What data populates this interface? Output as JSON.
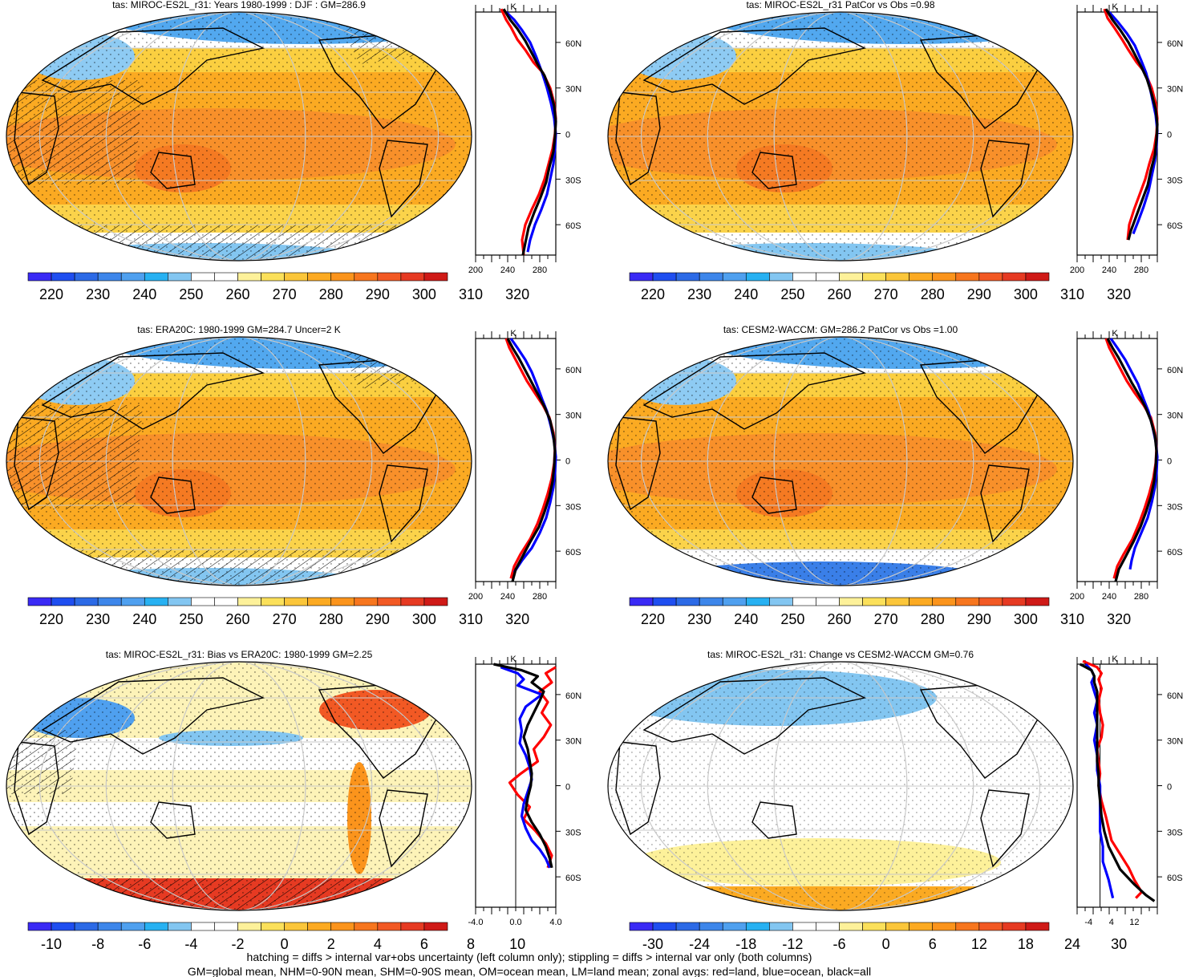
{
  "footer": {
    "line1": "hatching = diffs > internal var+obs uncertainty (left column only); stippling = diffs > internal var only (both columns)",
    "line2": "GM=global mean, NHM=0-90N mean, SHM=0-90S mean, OM=ocean mean, LM=land mean; zonal avgs: red=land, blue=ocean, black=all"
  },
  "colors": {
    "land": "#ff0000",
    "ocean": "#0000ff",
    "all": "#000000",
    "abs_scale": [
      "#3a2af5",
      "#1f4ef0",
      "#2c6ae6",
      "#3d86ea",
      "#4fa0ef",
      "#27b1f2",
      "#83c6f1",
      "#ffffff",
      "#ffffff",
      "#fdf19a",
      "#fbe05a",
      "#fbc63a",
      "#fcaa22",
      "#fb941c",
      "#f7761e",
      "#f25924",
      "#e63a22",
      "#cf1a17"
    ],
    "diff_scale": [
      "#3a2af5",
      "#1f4ef0",
      "#2c6ae6",
      "#3d86ea",
      "#4fa0ef",
      "#27b1f2",
      "#83c6f1",
      "#ffffff",
      "#ffffff",
      "#fdf19a",
      "#fbe05a",
      "#fbc63a",
      "#fcaa22",
      "#fb941c",
      "#f7761e",
      "#f25924",
      "#e63a22",
      "#cf1a17"
    ]
  },
  "panels": [
    {
      "title": "tas: MIROC-ES2L_r31: Years 1980-1999 : DJF : GM=286.9",
      "colorbar_labels": [
        "220",
        "230",
        "240",
        "250",
        "260",
        "270",
        "280",
        "290",
        "300",
        "310",
        "320"
      ],
      "chart_data": {
        "type": "line",
        "unit": "K",
        "xlim": [
          200,
          300
        ],
        "xticks": [
          "200",
          "240",
          "280"
        ],
        "ylim": [
          -80,
          80
        ],
        "yticks": [
          "60N",
          "30N",
          "0",
          "30S",
          "60S"
        ],
        "series": [
          {
            "role": "land",
            "x": [
              232,
              238,
              244,
              252,
              262,
              272,
              284,
              293,
              298,
              300,
              299,
              296,
              291,
              286,
              279,
              270,
              262,
              258,
              260
            ],
            "y": [
              82,
              75,
              70,
              62,
              55,
              47,
              40,
              30,
              20,
              10,
              0,
              -10,
              -20,
              -30,
              -40,
              -50,
              -60,
              -70,
              -80
            ]
          },
          {
            "role": "ocean",
            "x": [
              238,
              248,
              258,
              268,
              276,
              283,
              289,
              294,
              298,
              300,
              299,
              297,
              293,
              289,
              282,
              274,
              268,
              265
            ],
            "y": [
              80,
              75,
              68,
              60,
              50,
              40,
              30,
              20,
              10,
              0,
              -10,
              -20,
              -30,
              -40,
              -50,
              -60,
              -70,
              -78
            ]
          },
          {
            "role": "all",
            "x": [
              235,
              243,
              252,
              262,
              270,
              278,
              286,
              293,
              298,
              300,
              299,
              297,
              292,
              288,
              281,
              273,
              266,
              262,
              259
            ],
            "y": [
              82,
              75,
              69,
              61,
              53,
              45,
              38,
              28,
              18,
              8,
              -2,
              -12,
              -22,
              -32,
              -42,
              -52,
              -62,
              -72,
              -80
            ]
          }
        ]
      }
    },
    {
      "title": "tas: MIROC-ES2L_r31 PatCor vs Obs =0.98",
      "colorbar_labels": [
        "220",
        "230",
        "240",
        "250",
        "260",
        "270",
        "280",
        "290",
        "300",
        "310",
        "320"
      ],
      "chart_data": {
        "type": "line",
        "unit": "K",
        "xlim": [
          200,
          300
        ],
        "xticks": [
          "200",
          "240",
          "280"
        ],
        "ylim": [
          -80,
          80
        ],
        "yticks": [
          "60N",
          "30N",
          "0",
          "30S",
          "60S"
        ],
        "series": [
          {
            "role": "land",
            "x": [
              234,
              238,
              246,
              256,
              264,
              274,
              285,
              293,
              298,
              300,
              299,
              296,
              290,
              285,
              278,
              271,
              265,
              263
            ],
            "y": [
              82,
              76,
              70,
              62,
              55,
              47,
              40,
              30,
              20,
              10,
              0,
              -10,
              -20,
              -30,
              -40,
              -50,
              -60,
              -70
            ]
          },
          {
            "role": "ocean",
            "x": [
              240,
              250,
              262,
              272,
              280,
              286,
              290,
              294,
              298,
              300,
              299,
              297,
              293,
              289,
              283,
              276,
              270
            ],
            "y": [
              80,
              74,
              66,
              58,
              48,
              40,
              32,
              22,
              12,
              2,
              -8,
              -18,
              -28,
              -38,
              -48,
              -58,
              -66
            ]
          },
          {
            "role": "all",
            "x": [
              236,
              244,
              254,
              264,
              272,
              280,
              287,
              293,
              298,
              300,
              299,
              297,
              292,
              288,
              281,
              274,
              267,
              264
            ],
            "y": [
              82,
              75,
              68,
              60,
              52,
              44,
              36,
              26,
              16,
              6,
              -4,
              -14,
              -24,
              -34,
              -44,
              -54,
              -64,
              -70
            ]
          }
        ]
      }
    },
    {
      "title": "tas: ERA20C: 1980-1999 GM=284.7 Uncer=2 K",
      "colorbar_labels": [
        "220",
        "230",
        "240",
        "250",
        "260",
        "270",
        "280",
        "290",
        "300",
        "310",
        "320"
      ],
      "chart_data": {
        "type": "line",
        "unit": "K",
        "xlim": [
          200,
          300
        ],
        "xticks": [
          "200",
          "240",
          "280"
        ],
        "ylim": [
          -80,
          80
        ],
        "yticks": [
          "60N",
          "30N",
          "0",
          "30S",
          "60S"
        ],
        "series": [
          {
            "role": "land",
            "x": [
              238,
              242,
              248,
              256,
              264,
              274,
              284,
              292,
              297,
              299,
              298,
              295,
              290,
              284,
              277,
              268,
              256,
              248,
              244
            ],
            "y": [
              80,
              74,
              68,
              60,
              52,
              44,
              36,
              28,
              18,
              8,
              -2,
              -12,
              -22,
              -32,
              -42,
              -52,
              -62,
              -70,
              -78
            ]
          },
          {
            "role": "ocean",
            "x": [
              244,
              252,
              262,
              270,
              276,
              283,
              289,
              294,
              298,
              300,
              299,
              297,
              293,
              288,
              280,
              270,
              258,
              248
            ],
            "y": [
              80,
              74,
              66,
              58,
              50,
              40,
              32,
              22,
              12,
              2,
              -8,
              -18,
              -28,
              -38,
              -48,
              -58,
              -66,
              -74
            ]
          },
          {
            "role": "all",
            "x": [
              240,
              246,
              254,
              262,
              270,
              278,
              286,
              293,
              297,
              299,
              298,
              296,
              292,
              286,
              279,
              268,
              258,
              250,
              246
            ],
            "y": [
              80,
              74,
              67,
              59,
              51,
              43,
              35,
              26,
              16,
              6,
              -4,
              -14,
              -24,
              -34,
              -44,
              -54,
              -64,
              -72,
              -80
            ]
          }
        ]
      }
    },
    {
      "title": "tas: CESM2-WACCM: GM=286.2 PatCor vs Obs =1.00",
      "colorbar_labels": [
        "220",
        "230",
        "240",
        "250",
        "260",
        "270",
        "280",
        "290",
        "300",
        "310",
        "320"
      ],
      "chart_data": {
        "type": "line",
        "unit": "K",
        "xlim": [
          200,
          300
        ],
        "xticks": [
          "200",
          "240",
          "280"
        ],
        "ylim": [
          -80,
          80
        ],
        "yticks": [
          "60N",
          "30N",
          "0",
          "30S",
          "60S"
        ],
        "series": [
          {
            "role": "land",
            "x": [
              236,
              240,
              246,
              254,
              262,
              272,
              283,
              292,
              297,
              299,
              298,
              295,
              290,
              284,
              277,
              269,
              258,
              250,
              246
            ],
            "y": [
              80,
              74,
              68,
              60,
              52,
              44,
              36,
              28,
              18,
              8,
              -2,
              -12,
              -22,
              -32,
              -42,
              -52,
              -62,
              -70,
              -78
            ]
          },
          {
            "role": "ocean",
            "x": [
              242,
              250,
              260,
              268,
              276,
              283,
              289,
              294,
              298,
              300,
              299,
              297,
              293,
              288,
              280,
              272,
              268,
              266
            ],
            "y": [
              80,
              74,
              66,
              58,
              50,
              40,
              32,
              22,
              12,
              2,
              -8,
              -18,
              -28,
              -38,
              -48,
              -58,
              -66,
              -72
            ]
          },
          {
            "role": "all",
            "x": [
              238,
              244,
              252,
              260,
              268,
              277,
              285,
              292,
              297,
              299,
              298,
              296,
              292,
              286,
              279,
              270,
              260,
              252,
              248
            ],
            "y": [
              80,
              74,
              67,
              59,
              51,
              43,
              35,
              26,
              16,
              6,
              -4,
              -14,
              -24,
              -34,
              -44,
              -54,
              -64,
              -72,
              -80
            ]
          }
        ]
      }
    },
    {
      "title": "tas: MIROC-ES2L_r31: Bias vs ERA20C: 1980-1999 GM=2.25",
      "colorbar_labels": [
        "-10",
        "-8",
        "-6",
        "-4",
        "-2",
        "0",
        "2",
        "4",
        "6",
        "8",
        "10"
      ],
      "chart_data": {
        "type": "line",
        "unit": "K",
        "xlim": [
          -4,
          4
        ],
        "xticks": [
          "-4.0",
          "0.0",
          "4.0"
        ],
        "ylim": [
          -80,
          80
        ],
        "yticks": [
          "60N",
          "30N",
          "0",
          "30S",
          "60S"
        ],
        "series": [
          {
            "role": "land",
            "x": [
              4.0,
              3.0,
              3.6,
              2.4,
              3.2,
              2.6,
              3.5,
              2.8,
              1.8,
              2.2,
              0.5,
              -0.6,
              0.2,
              1.4,
              0.8,
              2.0,
              3.0,
              3.6,
              3.2
            ],
            "y": [
              78,
              74,
              68,
              62,
              55,
              48,
              40,
              32,
              24,
              16,
              8,
              2,
              -6,
              -14,
              -22,
              -30,
              -38,
              -46,
              -54
            ]
          },
          {
            "role": "ocean",
            "x": [
              -1.5,
              0.2,
              0.8,
              0.2,
              2.6,
              1.0,
              0.4,
              0.6,
              0.4,
              1.0,
              1.4,
              1.6,
              1.2,
              0.8,
              0.6,
              1.0,
              1.6,
              2.4,
              3.0,
              3.4
            ],
            "y": [
              78,
              74,
              70,
              66,
              60,
              52,
              44,
              36,
              28,
              20,
              12,
              4,
              -4,
              -12,
              -20,
              -28,
              -36,
              -42,
              -48,
              -54
            ]
          },
          {
            "role": "all",
            "x": [
              -2.2,
              0.6,
              2.2,
              1.6,
              2.8,
              2.4,
              1.8,
              1.2,
              0.8,
              1.2,
              1.4,
              1.6,
              1.5,
              1.2,
              1.0,
              1.6,
              2.4,
              3.0,
              3.4,
              3.6
            ],
            "y": [
              80,
              76,
              72,
              68,
              62,
              56,
              48,
              40,
              32,
              24,
              16,
              8,
              0,
              -8,
              -16,
              -24,
              -32,
              -40,
              -48,
              -54
            ]
          }
        ]
      }
    },
    {
      "title": "tas: MIROC-ES2L_r31: Change vs CESM2-WACCM GM=0.76",
      "colorbar_labels": [
        "-30",
        "-24",
        "-18",
        "-12",
        "-6",
        "0",
        "6",
        "12",
        "18",
        "24",
        "30"
      ],
      "chart_data": {
        "type": "line",
        "unit": "K",
        "xlim": [
          -8,
          20
        ],
        "xticks": [
          "-4",
          "4",
          "12"
        ],
        "ylim": [
          -80,
          80
        ],
        "yticks": [
          "60N",
          "30N",
          "0",
          "30S",
          "60S"
        ],
        "series": [
          {
            "role": "land",
            "x": [
              -6,
              -1,
              0.5,
              -0.5,
              0.5,
              -0.5,
              0,
              1.0,
              0.5,
              -1.0,
              -0.5,
              0,
              -0.5,
              0.5,
              2.0,
              3.0,
              4.0,
              10.0,
              12.0,
              14.5,
              12.5
            ],
            "y": [
              82,
              78,
              74,
              70,
              64,
              56,
              48,
              40,
              32,
              24,
              16,
              8,
              0,
              -10,
              -20,
              -28,
              -36,
              -54,
              -62,
              -70,
              -74
            ]
          },
          {
            "role": "ocean",
            "x": [
              -5,
              -3,
              -2,
              -3,
              -2,
              -1,
              -2,
              -1,
              -2,
              -1,
              -1,
              0,
              0,
              0,
              0,
              1,
              1,
              3,
              4.5
            ],
            "y": [
              80,
              76,
              72,
              68,
              62,
              56,
              48,
              40,
              30,
              20,
              10,
              0,
              -10,
              -20,
              -30,
              -40,
              -50,
              -62,
              -74
            ]
          },
          {
            "role": "all",
            "x": [
              -7,
              -3,
              -2,
              -2,
              -1,
              -1,
              -1,
              -1,
              -1,
              -1,
              -1,
              -0.5,
              -0.5,
              0,
              0.5,
              1.5,
              3,
              7,
              12,
              16,
              19
            ],
            "y": [
              80,
              76,
              72,
              68,
              62,
              56,
              48,
              40,
              32,
              24,
              16,
              8,
              0,
              -10,
              -20,
              -30,
              -40,
              -55,
              -65,
              -72,
              -76
            ]
          }
        ]
      }
    }
  ]
}
